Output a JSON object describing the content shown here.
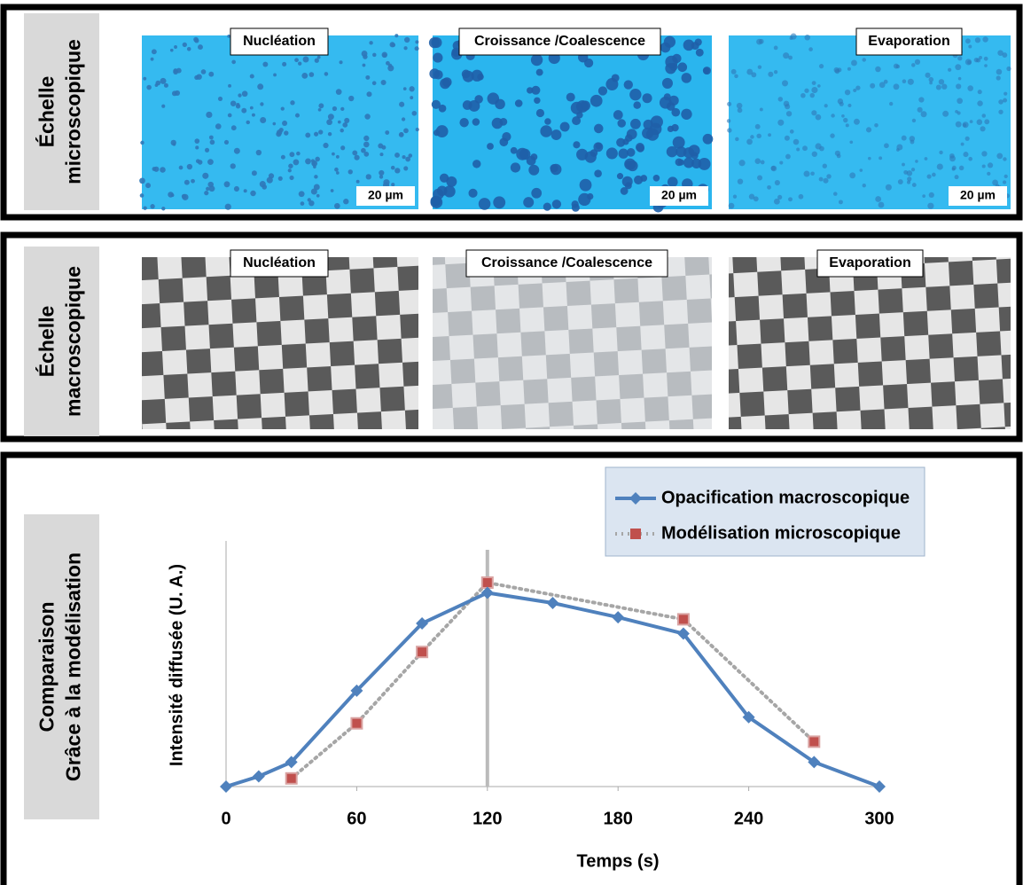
{
  "panels": [
    {
      "label": [
        "Échelle",
        "microscopique"
      ],
      "images": [
        {
          "label": "Nucléation",
          "scale": "20 µm"
        },
        {
          "label": "Croissance /Coalescence",
          "scale": "20 µm"
        },
        {
          "label": "Evaporation",
          "scale": "20 µm"
        }
      ]
    },
    {
      "label": [
        "Échelle",
        "macroscopique"
      ],
      "images": [
        {
          "label": "Nucléation"
        },
        {
          "label": "Croissance /Coalescence"
        },
        {
          "label": "Evaporation"
        }
      ]
    },
    {
      "label": [
        "Comparaison",
        "Grâce à la modélisation"
      ]
    }
  ],
  "chart_data": {
    "type": "line",
    "xlabel": "Temps (s)",
    "ylabel": "Intensité diffusée (U. A.)",
    "xlim": [
      0,
      300
    ],
    "xticks": [
      0,
      60,
      120,
      180,
      240,
      300
    ],
    "ylim": [
      0,
      100
    ],
    "series": [
      {
        "name": "Opacification macroscopique",
        "color": "#4f81bd",
        "style": "solid",
        "marker": "diamond",
        "x": [
          0,
          15,
          30,
          60,
          90,
          120,
          150,
          180,
          210,
          240,
          270,
          300
        ],
        "values": [
          0,
          5,
          12,
          47,
          80,
          95,
          90,
          83,
          75,
          34,
          12,
          0
        ]
      },
      {
        "name": "Modélisation microscopique",
        "color": "#c0504d",
        "style": "dotted",
        "marker": "square",
        "x": [
          30,
          60,
          90,
          120,
          210,
          270
        ],
        "values": [
          4,
          31,
          66,
          100,
          82,
          22
        ]
      }
    ],
    "vlines": [
      120
    ]
  }
}
